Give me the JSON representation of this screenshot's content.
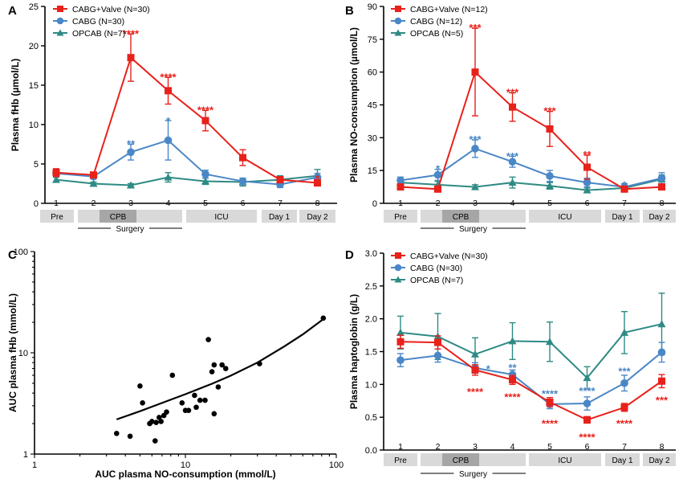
{
  "colors": {
    "valve": "#e8211b",
    "cabg": "#4a87c6",
    "opcab": "#2e8a84",
    "axis": "#000000",
    "band": "#d9d9d9",
    "band_dark": "#a6a6a6"
  },
  "timeline": {
    "numbers": [
      "1",
      "2",
      "3",
      "4",
      "5",
      "6",
      "7",
      "8"
    ],
    "boxes": [
      "Pre",
      "CPB",
      "ICU",
      "Day 1",
      "Day 2"
    ],
    "surgery": "Surgery"
  },
  "chart_data": [
    {
      "panel": "A",
      "type": "line",
      "ylabel": "Plasma fHb (µmol/L)",
      "ylim": [
        0,
        25
      ],
      "yticks": [
        "0",
        "5",
        "10",
        "15",
        "20",
        "25"
      ],
      "x": [
        1,
        2,
        3,
        4,
        5,
        6,
        7,
        8
      ],
      "legend": [
        "CABG+Valve (N=30)",
        "CABG (N=30)",
        "OPCAB (N=7)"
      ],
      "series": [
        {
          "name": "CABG+Valve (N=30)",
          "key": "valve",
          "values": [
            3.9,
            3.6,
            18.5,
            14.3,
            10.5,
            5.8,
            3.0,
            2.6
          ],
          "errors": [
            0.5,
            0.3,
            3.0,
            1.7,
            1.3,
            1.0,
            0.4,
            0.4
          ]
        },
        {
          "name": "CABG (N=30)",
          "key": "cabg",
          "values": [
            3.8,
            3.4,
            6.5,
            8.0,
            3.7,
            2.8,
            2.4,
            3.3
          ],
          "errors": [
            0.4,
            0.3,
            1.0,
            2.5,
            0.5,
            0.4,
            0.4,
            0.5
          ]
        },
        {
          "name": "OPCAB (N=7)",
          "key": "opcab",
          "values": [
            3.0,
            2.5,
            2.3,
            3.3,
            2.8,
            2.7,
            3.0,
            3.5
          ],
          "errors": [
            0.3,
            0.2,
            0.2,
            0.6,
            0.4,
            0.5,
            0.5,
            0.8
          ]
        }
      ],
      "annotations": [
        {
          "x": 3,
          "y": 21.9,
          "text": "****",
          "key": "valve"
        },
        {
          "x": 4,
          "y": 16.4,
          "text": "****",
          "key": "valve"
        },
        {
          "x": 5,
          "y": 12.2,
          "text": "****",
          "key": "valve"
        },
        {
          "x": 8,
          "y": 3.5,
          "text": "*",
          "key": "valve"
        },
        {
          "x": 3,
          "y": 7.9,
          "text": "**",
          "key": "cabg"
        },
        {
          "x": 4,
          "y": 10.8,
          "text": "*",
          "key": "cabg"
        }
      ]
    },
    {
      "panel": "B",
      "type": "line",
      "ylabel": "Plasma NO-consumption (µmol/L)",
      "ylim": [
        0,
        90
      ],
      "yticks": [
        "0",
        "15",
        "30",
        "45",
        "60",
        "75",
        "90"
      ],
      "x": [
        1,
        2,
        3,
        4,
        5,
        6,
        7,
        8
      ],
      "legend": [
        "CABG+Valve (N=12)",
        "CABG (N=12)",
        "OPCAB (N=5)"
      ],
      "series": [
        {
          "name": "CABG+Valve (N=12)",
          "key": "valve",
          "values": [
            7.5,
            6.5,
            60,
            44,
            34,
            16.5,
            6.5,
            7.5
          ],
          "errors": [
            1.0,
            1.0,
            20,
            6.5,
            8,
            5.5,
            1.0,
            1.0
          ]
        },
        {
          "name": "CABG (N=12)",
          "key": "cabg",
          "values": [
            10.5,
            13,
            25,
            19,
            12.5,
            9.5,
            7.5,
            11.5
          ],
          "errors": [
            1.5,
            2.5,
            4,
            2.5,
            2.5,
            2,
            1.5,
            2.5
          ]
        },
        {
          "name": "OPCAB (N=5)",
          "key": "opcab",
          "values": [
            9.5,
            8.5,
            7.5,
            9.5,
            8,
            6,
            7,
            11
          ],
          "errors": [
            1.5,
            1.5,
            1.0,
            2.5,
            1.5,
            1.0,
            1.0,
            2.0
          ]
        }
      ],
      "annotations": [
        {
          "x": 3,
          "y": 81.5,
          "text": "***",
          "key": "valve"
        },
        {
          "x": 4,
          "y": 52,
          "text": "***",
          "key": "valve"
        },
        {
          "x": 5,
          "y": 43.5,
          "text": "***",
          "key": "valve"
        },
        {
          "x": 6,
          "y": 23.5,
          "text": "**",
          "key": "valve"
        },
        {
          "x": 2,
          "y": 17,
          "text": "*",
          "key": "cabg"
        },
        {
          "x": 3,
          "y": 30.5,
          "text": "***",
          "key": "cabg"
        },
        {
          "x": 4,
          "y": 22.8,
          "text": "***",
          "key": "cabg"
        },
        {
          "x": 7,
          "y": 9.8,
          "text": "*",
          "key": "cabg"
        }
      ]
    },
    {
      "panel": "C",
      "type": "scatter",
      "xlabel": "AUC plasma NO-consumption (mmol/L)",
      "ylabel": "AUC plasma fHb (mmol/L)",
      "xlim": [
        1,
        100
      ],
      "ylim": [
        1,
        100
      ],
      "xticks": [
        "1",
        "10",
        "100"
      ],
      "yticks": [
        "1",
        "10",
        "100"
      ],
      "points": [
        [
          3.5,
          1.6
        ],
        [
          4.3,
          1.5
        ],
        [
          5,
          4.7
        ],
        [
          5.2,
          3.2
        ],
        [
          5.8,
          2.0
        ],
        [
          6.0,
          2.1
        ],
        [
          6.3,
          1.35
        ],
        [
          6.4,
          2.05
        ],
        [
          6.7,
          2.3
        ],
        [
          6.9,
          2.1
        ],
        [
          7.2,
          2.4
        ],
        [
          7.5,
          2.6
        ],
        [
          8.2,
          6.0
        ],
        [
          9.5,
          3.2
        ],
        [
          10,
          2.7
        ],
        [
          10.5,
          2.7
        ],
        [
          11.5,
          3.8
        ],
        [
          11.8,
          2.9
        ],
        [
          12.5,
          3.4
        ],
        [
          13.5,
          3.4
        ],
        [
          14.2,
          13.5
        ],
        [
          15,
          6.5
        ],
        [
          15.5,
          2.5
        ],
        [
          15.5,
          7.6
        ],
        [
          16.5,
          4.6
        ],
        [
          17.5,
          7.6
        ],
        [
          18.5,
          7.0
        ],
        [
          31,
          7.8
        ],
        [
          82,
          22
        ]
      ],
      "fit": [
        [
          3.5,
          2.2
        ],
        [
          5,
          2.65
        ],
        [
          7,
          3.2
        ],
        [
          10,
          3.9
        ],
        [
          15,
          4.95
        ],
        [
          20,
          5.95
        ],
        [
          30,
          8.0
        ],
        [
          45,
          11.5
        ],
        [
          60,
          15.2
        ],
        [
          82,
          21.5
        ]
      ]
    },
    {
      "panel": "D",
      "type": "line",
      "ylabel": "Plasma haptoglobin (g/L)",
      "ylim": [
        0,
        3
      ],
      "yticks": [
        "0.0",
        "0.5",
        "1.0",
        "1.5",
        "2.0",
        "2.5",
        "3.0"
      ],
      "x": [
        1,
        2,
        3,
        4,
        5,
        6,
        7,
        8
      ],
      "legend": [
        "CABG+Valve (N=30)",
        "CABG (N=30)",
        "OPCAB (N=7)"
      ],
      "series": [
        {
          "name": "CABG+Valve (N=30)",
          "key": "valve",
          "values": [
            1.65,
            1.64,
            1.22,
            1.07,
            0.73,
            0.46,
            0.65,
            1.05
          ],
          "errors": [
            0.1,
            0.1,
            0.08,
            0.07,
            0.07,
            0.05,
            0.06,
            0.1
          ]
        },
        {
          "name": "CABG (N=30)",
          "key": "cabg",
          "values": [
            1.37,
            1.44,
            1.25,
            1.15,
            0.7,
            0.71,
            1.02,
            1.49
          ],
          "errors": [
            0.1,
            0.1,
            0.08,
            0.07,
            0.07,
            0.1,
            0.12,
            0.15
          ]
        },
        {
          "name": "OPCAB (N=7)",
          "key": "opcab",
          "values": [
            1.79,
            1.73,
            1.46,
            1.66,
            1.65,
            1.1,
            1.79,
            1.92
          ],
          "errors": [
            0.25,
            0.35,
            0.25,
            0.28,
            0.3,
            0.17,
            0.32,
            0.47
          ]
        }
      ],
      "annotations": [
        {
          "x": 3,
          "y": 0.93,
          "text": "****",
          "key": "valve"
        },
        {
          "x": 4,
          "y": 0.85,
          "text": "****",
          "key": "valve"
        },
        {
          "x": 5,
          "y": 0.45,
          "text": "****",
          "key": "valve"
        },
        {
          "x": 6,
          "y": 0.24,
          "text": "****",
          "key": "valve"
        },
        {
          "x": 7,
          "y": 0.45,
          "text": "****",
          "key": "valve"
        },
        {
          "x": 8,
          "y": 0.8,
          "text": "***",
          "key": "valve"
        },
        {
          "x": 3.35,
          "y": 1.28,
          "text": "*",
          "key": "cabg"
        },
        {
          "x": 4,
          "y": 1.3,
          "text": "**",
          "key": "cabg"
        },
        {
          "x": 5,
          "y": 0.9,
          "text": "****",
          "key": "cabg"
        },
        {
          "x": 6,
          "y": 0.94,
          "text": "****",
          "key": "cabg"
        },
        {
          "x": 7,
          "y": 1.24,
          "text": "***",
          "key": "cabg"
        }
      ]
    }
  ]
}
